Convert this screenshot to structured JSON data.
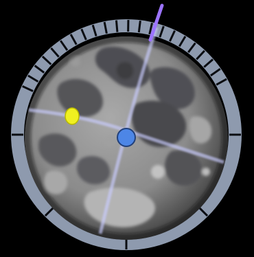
{
  "colors": {
    "background": "#000000",
    "dial_ring": "#8e9aae",
    "dial_ring_dark": "#6e7a8e",
    "tick": "#0b0d12",
    "moon_base": "#8a8a8a",
    "moon_mare": "#4a4a4c",
    "moon_highland": "#b8b8b8",
    "grid_line": "#c9ccff",
    "pole_marker": "#9c74ff",
    "sub_point_marker": "#4d86e6",
    "sun_marker": "#f0f020"
  },
  "icons": {
    "dial": "libration-dial-icon",
    "moon": "moon-globe-icon",
    "sun_point": "sun-point-icon",
    "earth_point": "sub-earth-point-icon",
    "pole": "north-pole-axis-icon"
  }
}
